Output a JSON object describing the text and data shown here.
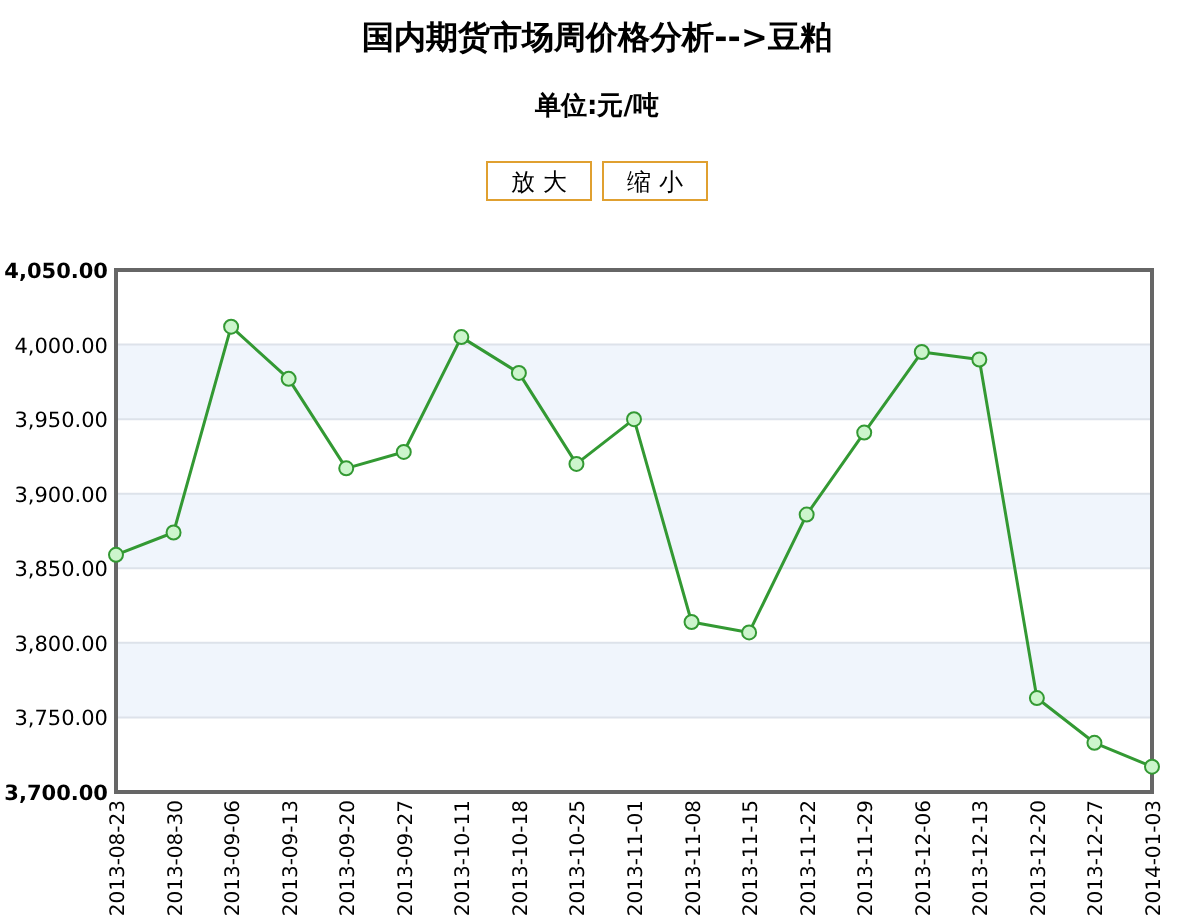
{
  "chart_data": {
    "type": "line",
    "title": "国内期货市场周价格分析-->豆粕",
    "subtitle": "单位:元/吨",
    "annotations": [
      "放 大",
      "缩 小"
    ],
    "categories": [
      "2013-08-23",
      "2013-08-30",
      "2013-09-06",
      "2013-09-13",
      "2013-09-20",
      "2013-09-27",
      "2013-10-11",
      "2013-10-18",
      "2013-10-25",
      "2013-11-01",
      "2013-11-08",
      "2013-11-15",
      "2013-11-22",
      "2013-11-29",
      "2013-12-06",
      "2013-12-13",
      "2013-12-20",
      "2013-12-27",
      "2014-01-03"
    ],
    "series": [
      {
        "color": "#339933",
        "values": [
          3859,
          3874,
          4012,
          3977,
          3917,
          3928,
          4005,
          3981,
          3920,
          3950,
          3814,
          3807,
          3886,
          3941,
          3995,
          3990,
          3763,
          3733,
          3717
        ]
      }
    ],
    "ylim": [
      3700,
      4050
    ],
    "yticks": [
      {
        "value": 3700,
        "label": "3,700.00"
      },
      {
        "value": 3750,
        "label": "3,750.00"
      },
      {
        "value": 3800,
        "label": "3,800.00"
      },
      {
        "value": 3850,
        "label": "3,850.00"
      },
      {
        "value": 3900,
        "label": "3,900.00"
      },
      {
        "value": 3950,
        "label": "3,950.00"
      },
      {
        "value": 4000,
        "label": "4,000.00"
      },
      {
        "value": 4050,
        "label": "4,050.00"
      }
    ],
    "bands": [
      {
        "axis": "y",
        "from": 3750,
        "to": 3800,
        "color": "#f0f5fc"
      },
      {
        "axis": "y",
        "from": 3850,
        "to": 3900,
        "color": "#f0f5fc"
      },
      {
        "axis": "y",
        "from": 3950,
        "to": 4000,
        "color": "#f0f5fc"
      }
    ],
    "grid": "y",
    "marker": "circle",
    "line_style": "solid"
  }
}
